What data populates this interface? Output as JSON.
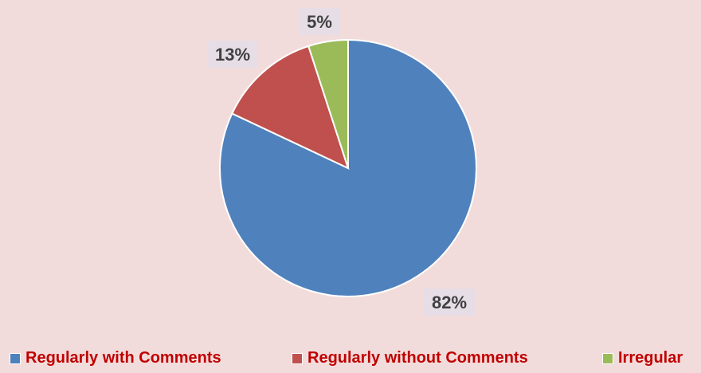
{
  "chart_data": {
    "type": "pie",
    "title": "",
    "categories": [
      "Regularly with Comments",
      "Regularly without Comments",
      "Irregular"
    ],
    "values": [
      82,
      13,
      5
    ],
    "labels": [
      "82%",
      "13%",
      "5%"
    ],
    "colors": [
      "#4f81bd",
      "#c0504d",
      "#9bbb59"
    ],
    "legend": "bottom",
    "start_angle": "12 o'clock, clockwise"
  }
}
